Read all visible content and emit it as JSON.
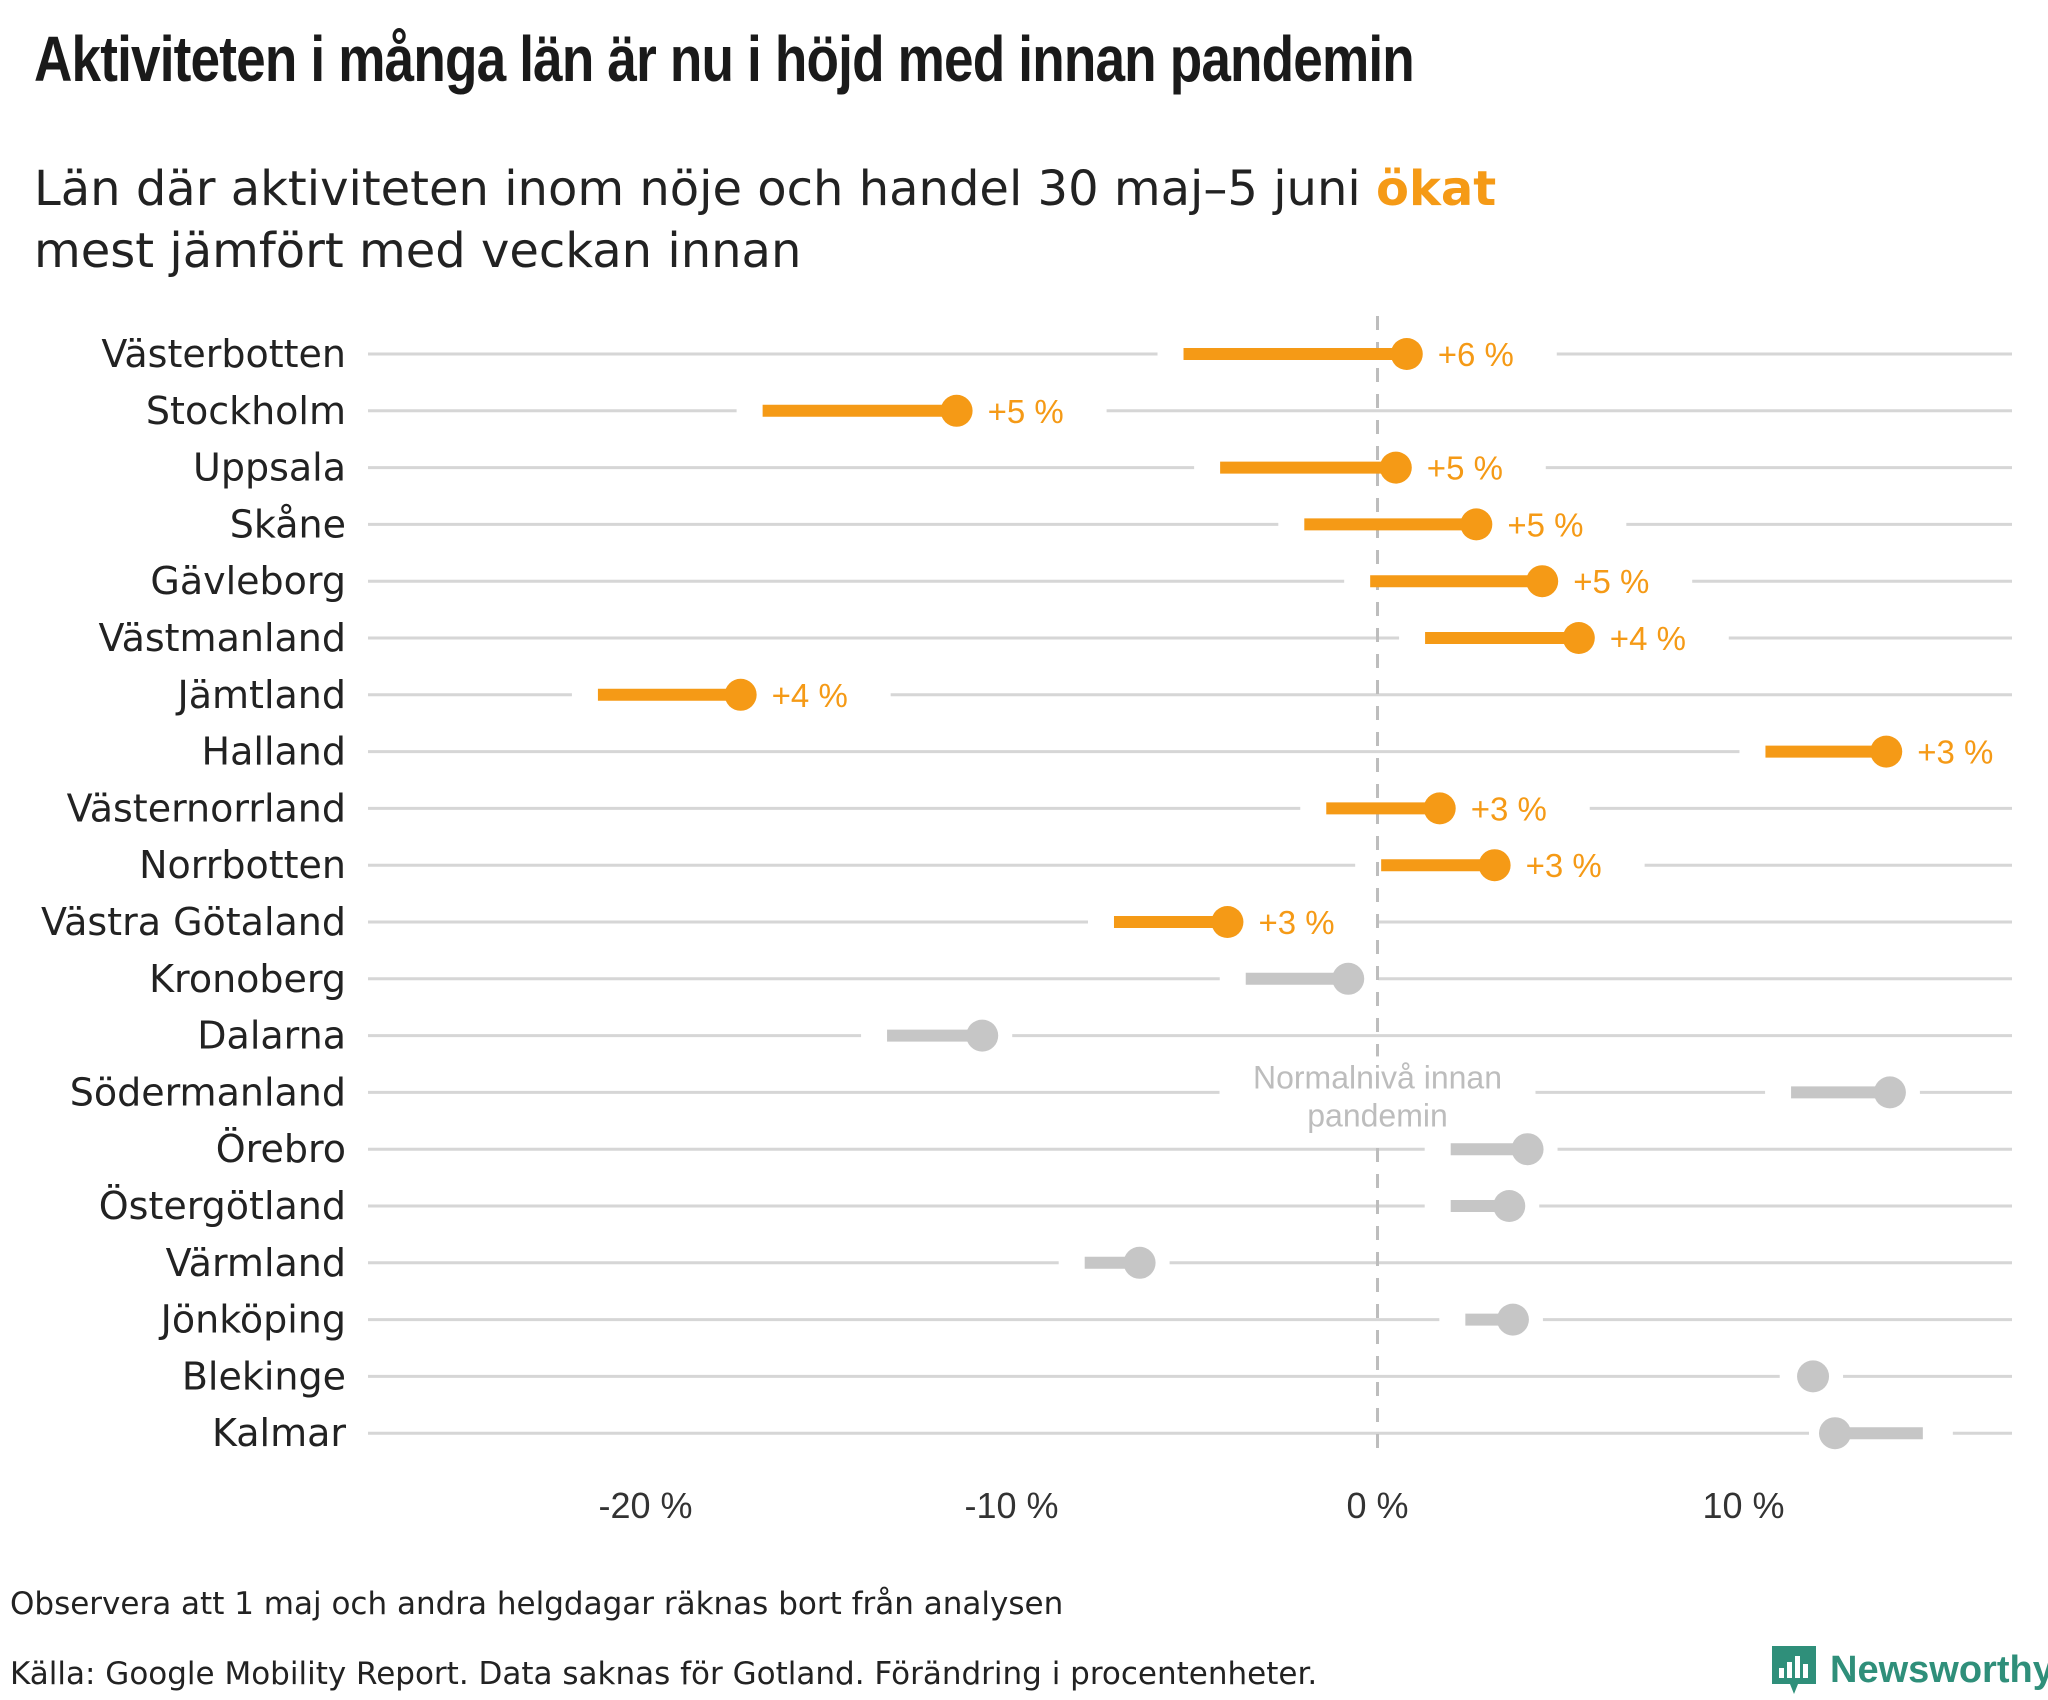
{
  "title": "Aktiviteten i många län är nu i höjd med innan pandemin",
  "subtitle": {
    "before": "Län där aktiviteten inom nöje och handel 30 maj–5 juni ",
    "highlight": "ökat",
    "after": "mest jämfört med veckan innan"
  },
  "colors": {
    "increase": "#f59a16",
    "neutral": "#c6c6c6",
    "gridline": "#d6d6d6",
    "reference_line": "#bdbdbd"
  },
  "chart_data": {
    "type": "dumbbell",
    "xlim": [
      -27.5,
      17
    ],
    "x_ticks": [
      -20,
      -10,
      0,
      10
    ],
    "x_tick_labels": [
      "-20 %",
      "-10 %",
      "0 %",
      "10 %"
    ],
    "reference_line": {
      "x": 0,
      "label_lines": [
        "Normalnivå innan",
        "pandemin"
      ]
    },
    "grid": "horizontal",
    "rows": [
      {
        "name": "Västerbotten",
        "previous": -5.3,
        "current": 0.8,
        "label": "+6 %",
        "highlight": true
      },
      {
        "name": "Stockholm",
        "previous": -16.8,
        "current": -11.5,
        "label": "+5 %",
        "highlight": true
      },
      {
        "name": "Uppsala",
        "previous": -4.3,
        "current": 0.5,
        "label": "+5 %",
        "highlight": true
      },
      {
        "name": "Skåne",
        "previous": -2.0,
        "current": 2.7,
        "label": "+5 %",
        "highlight": true
      },
      {
        "name": "Gävleborg",
        "previous": -0.2,
        "current": 4.5,
        "label": "+5 %",
        "highlight": true
      },
      {
        "name": "Västmanland",
        "previous": 1.3,
        "current": 5.5,
        "label": "+4 %",
        "highlight": true
      },
      {
        "name": "Jämtland",
        "previous": -21.3,
        "current": -17.4,
        "label": "+4 %",
        "highlight": true
      },
      {
        "name": "Halland",
        "previous": 10.6,
        "current": 13.9,
        "label": "+3 %",
        "highlight": true
      },
      {
        "name": "Västernorrland",
        "previous": -1.4,
        "current": 1.7,
        "label": "+3 %",
        "highlight": true
      },
      {
        "name": "Norrbotten",
        "previous": 0.1,
        "current": 3.2,
        "label": "+3 %",
        "highlight": true
      },
      {
        "name": "Västra Götaland",
        "previous": -7.2,
        "current": -4.1,
        "label": "+3 %",
        "highlight": true
      },
      {
        "name": "Kronoberg",
        "previous": -3.6,
        "current": -0.8,
        "label": "",
        "highlight": false
      },
      {
        "name": "Dalarna",
        "previous": -13.4,
        "current": -10.8,
        "label": "",
        "highlight": false
      },
      {
        "name": "Södermanland",
        "previous": 11.3,
        "current": 14.0,
        "label": "",
        "highlight": false
      },
      {
        "name": "Örebro",
        "previous": 2.0,
        "current": 4.1,
        "label": "",
        "highlight": false
      },
      {
        "name": "Östergötland",
        "previous": 2.0,
        "current": 3.6,
        "label": "",
        "highlight": false
      },
      {
        "name": "Värmland",
        "previous": -8.0,
        "current": -6.5,
        "label": "",
        "highlight": false
      },
      {
        "name": "Jönköping",
        "previous": 2.4,
        "current": 3.7,
        "label": "",
        "highlight": false
      },
      {
        "name": "Blekinge",
        "previous": 11.7,
        "current": 11.9,
        "label": "",
        "highlight": false
      },
      {
        "name": "Kalmar",
        "previous": 14.9,
        "current": 12.5,
        "label": "",
        "highlight": false
      }
    ]
  },
  "footer": {
    "note": "Observera att 1 maj och andra helgdagar räknas bort från analysen",
    "source": "Källa: Google Mobility Report. Data saknas för Gotland. Förändring i procentenheter."
  },
  "brand": {
    "name": "Newsworthy",
    "icon": "bar-chart-speech-bubble-icon",
    "color": "#2f8f7a"
  }
}
